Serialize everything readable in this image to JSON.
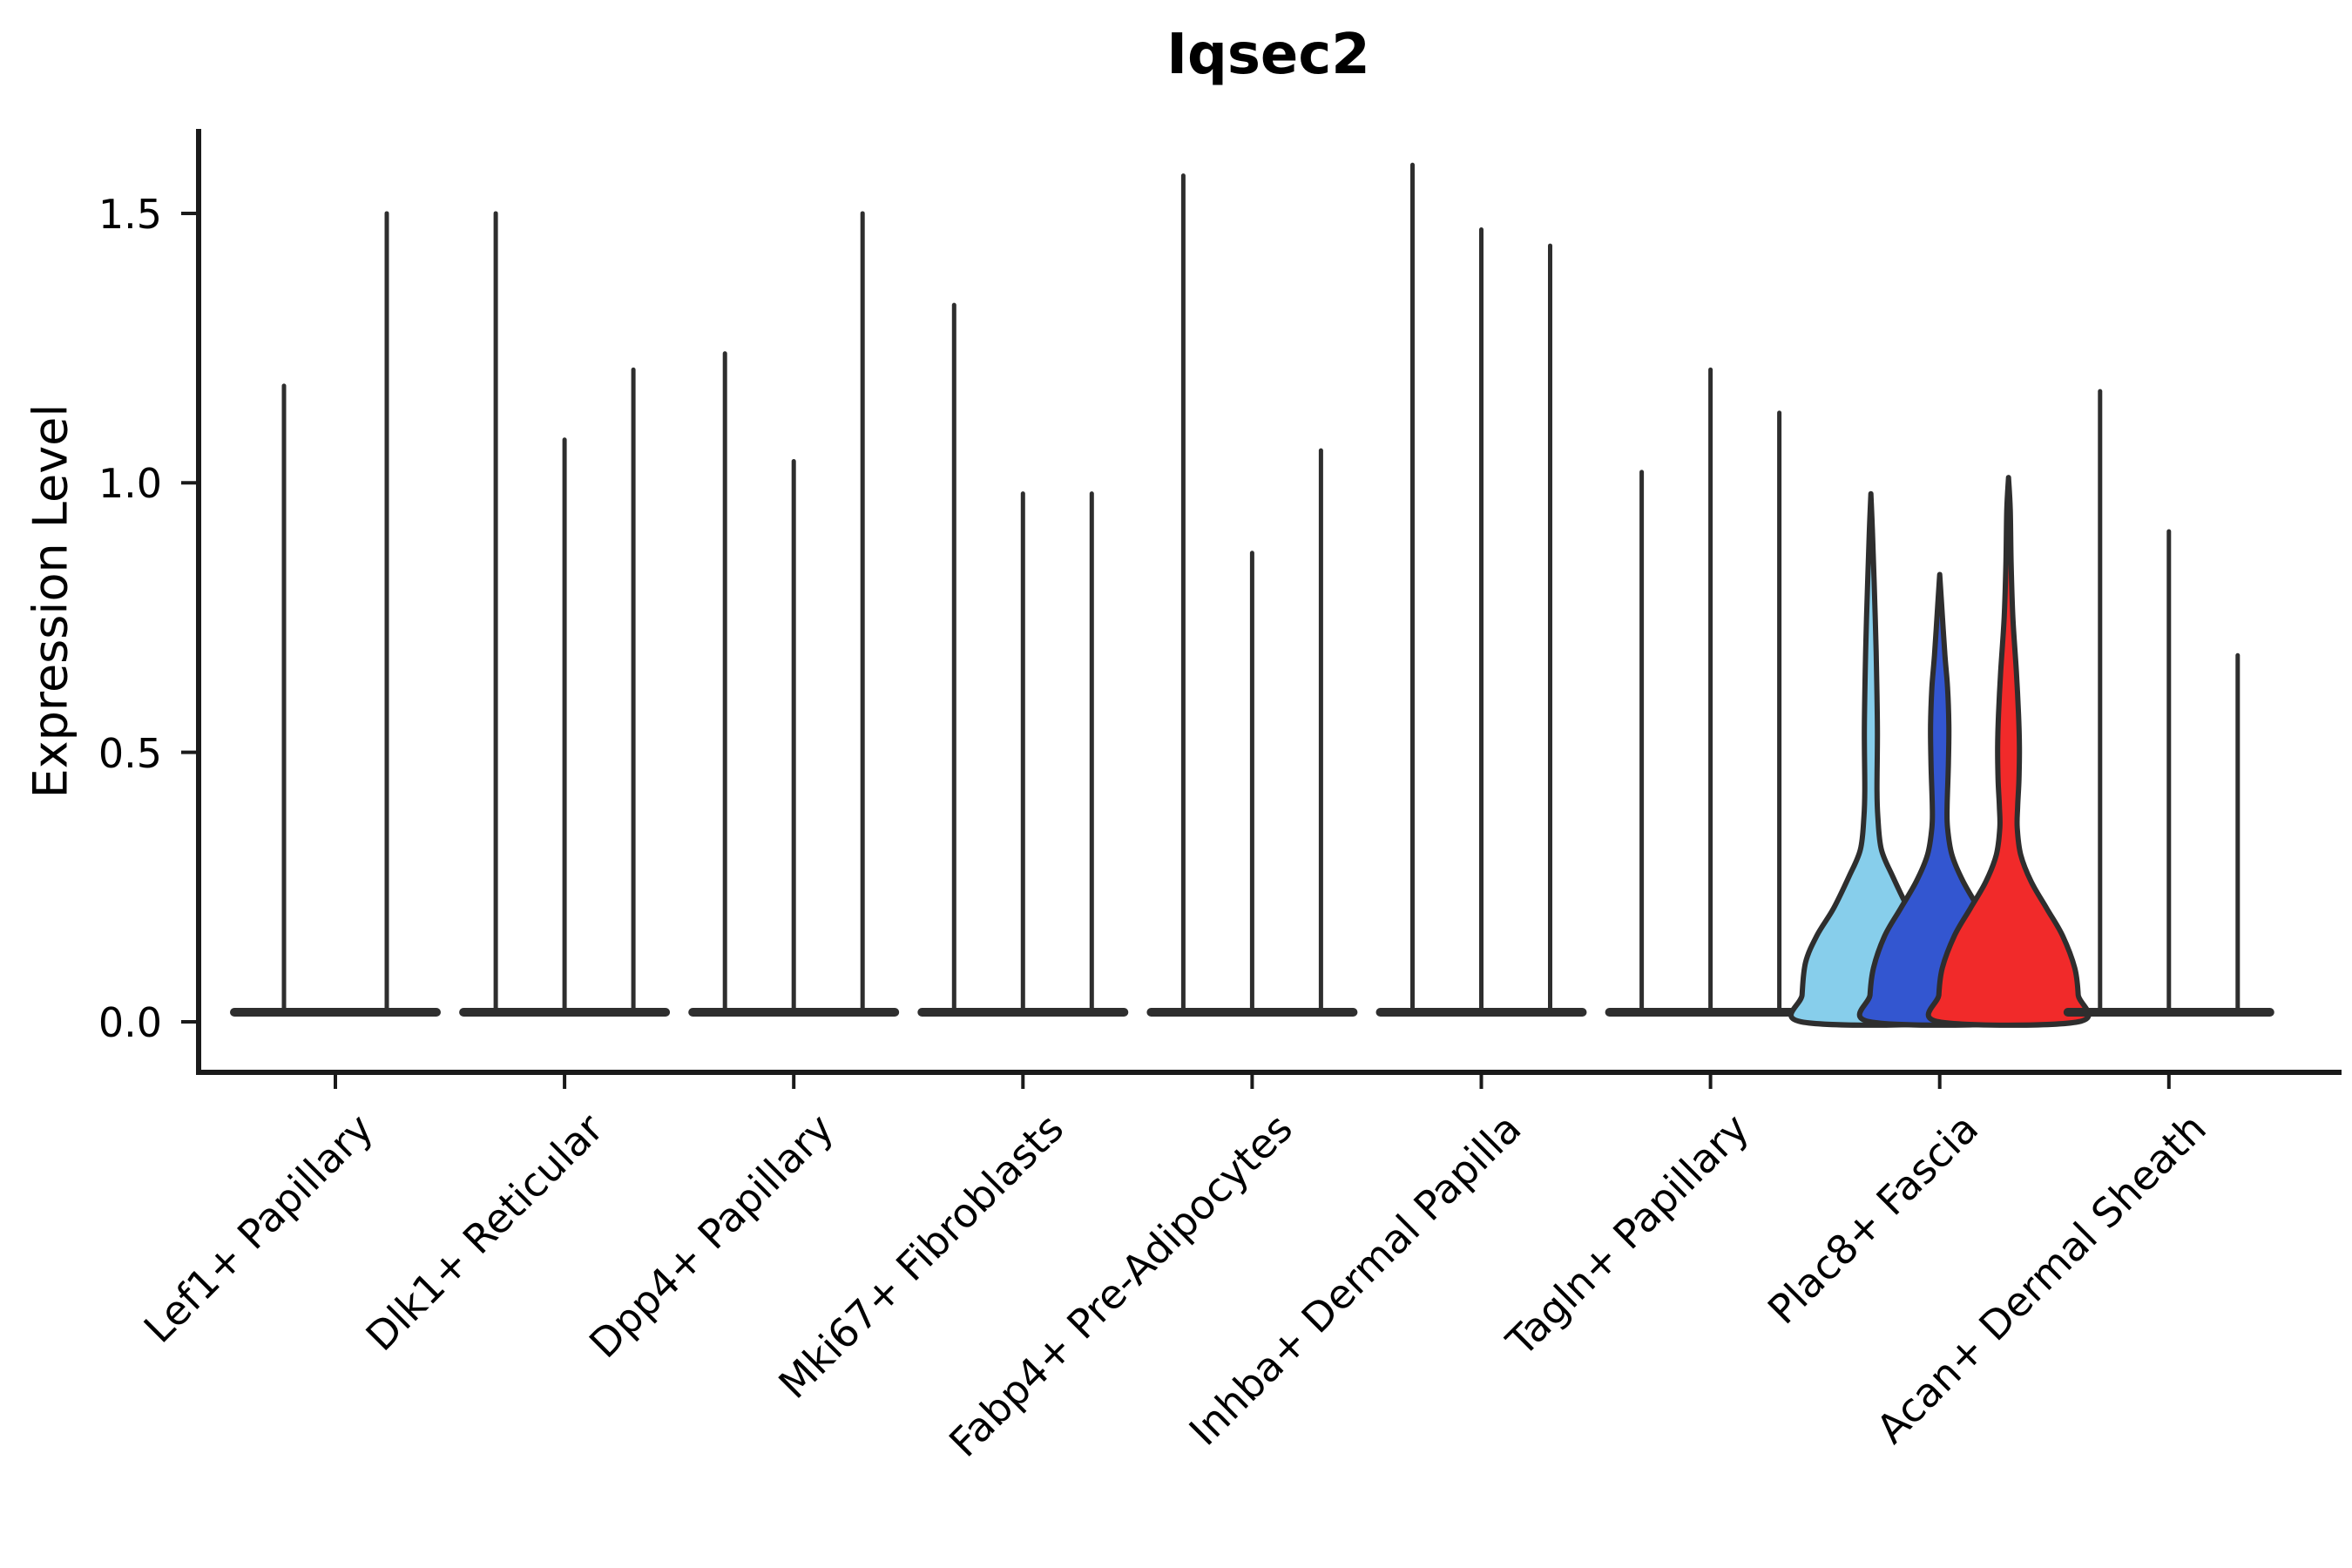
{
  "title": "Iqsec2",
  "y_axis": {
    "label": "Expression Level",
    "tick_labels": [
      "0.0",
      "0.5",
      "1.0",
      "1.5"
    ],
    "tick_values": [
      0.0,
      0.5,
      1.0,
      1.5
    ]
  },
  "colors": {
    "edge": "#2e2e2e",
    "axis": "#1a1a1a",
    "background": "#ffffff",
    "highlight_fills": [
      "#87CEEB",
      "#3356D0",
      "#F12A2A"
    ]
  },
  "chart_data": {
    "type": "violin",
    "title": "Iqsec2",
    "xlabel": "",
    "ylabel": "Expression Level",
    "ylim": [
      0,
      1.68
    ],
    "yticks": [
      0.0,
      0.5,
      1.0,
      1.5
    ],
    "grid": false,
    "legend": "none",
    "x_tick_rotation_deg": 45,
    "categories": [
      "Lef1+ Papillary",
      "Dlk1+ Reticular",
      "Dpp4+ Papillary",
      "Mki67+ Fibroblasts",
      "Fabp4+ Pre-Adipocytes",
      "Inhba+ Dermal Papilla",
      "Tagln+ Papillary",
      "Plac8+ Fascia",
      "Acan+ Dermal Sheath"
    ],
    "groups": [
      {
        "category": "Lef1+ Papillary",
        "colored": false,
        "expression_maxima": [
          1.18,
          1.5
        ]
      },
      {
        "category": "Dlk1+ Reticular",
        "colored": false,
        "expression_maxima": [
          1.5,
          1.08,
          1.21
        ]
      },
      {
        "category": "Dpp4+ Papillary",
        "colored": false,
        "expression_maxima": [
          1.24,
          1.04,
          1.5
        ]
      },
      {
        "category": "Mki67+ Fibroblasts",
        "colored": false,
        "expression_maxima": [
          1.33,
          0.98,
          0.98
        ]
      },
      {
        "category": "Fabp4+ Pre-Adipocytes",
        "colored": false,
        "expression_maxima": [
          1.57,
          0.87,
          1.06
        ]
      },
      {
        "category": "Inhba+ Dermal Papilla",
        "colored": false,
        "expression_maxima": [
          1.59,
          1.47,
          1.44
        ]
      },
      {
        "category": "Tagln+ Papillary",
        "colored": false,
        "expression_maxima": [
          1.02,
          1.21,
          1.13
        ]
      },
      {
        "category": "Plac8+ Fascia",
        "colored": true,
        "expression_maxima": [
          0.98,
          0.83,
          1.01
        ],
        "violin_colors": [
          "#87CEEB",
          "#3356D0",
          "#F12A2A"
        ],
        "profiles": [
          [
            [
              0.98,
              0
            ],
            [
              0.9,
              2
            ],
            [
              0.75,
              5
            ],
            [
              0.65,
              6.5
            ],
            [
              0.54,
              7.5
            ],
            [
              0.43,
              7
            ],
            [
              0.38,
              8
            ],
            [
              0.32,
              12
            ],
            [
              0.27,
              25
            ],
            [
              0.21,
              43
            ],
            [
              0.16,
              62
            ],
            [
              0.11,
              75
            ],
            [
              0.05,
              79
            ],
            [
              0.0,
              80
            ]
          ],
          [
            [
              0.83,
              0
            ],
            [
              0.78,
              2
            ],
            [
              0.68,
              6
            ],
            [
              0.62,
              9
            ],
            [
              0.55,
              10.5
            ],
            [
              0.48,
              10
            ],
            [
              0.4,
              8.5
            ],
            [
              0.36,
              9
            ],
            [
              0.31,
              14
            ],
            [
              0.26,
              27
            ],
            [
              0.21,
              45
            ],
            [
              0.16,
              63
            ],
            [
              0.1,
              76
            ],
            [
              0.05,
              80
            ],
            [
              0.0,
              80
            ]
          ],
          [
            [
              1.01,
              0
            ],
            [
              0.95,
              2
            ],
            [
              0.85,
              3
            ],
            [
              0.75,
              5
            ],
            [
              0.65,
              9
            ],
            [
              0.57,
              11.5
            ],
            [
              0.51,
              12.5
            ],
            [
              0.45,
              12
            ],
            [
              0.4,
              10.5
            ],
            [
              0.36,
              10
            ],
            [
              0.31,
              14
            ],
            [
              0.26,
              26
            ],
            [
              0.21,
              44
            ],
            [
              0.16,
              62
            ],
            [
              0.1,
              76
            ],
            [
              0.05,
              80
            ],
            [
              0.0,
              80
            ]
          ]
        ]
      },
      {
        "category": "Acan+ Dermal Sheath",
        "colored": false,
        "expression_maxima": [
          1.17,
          0.91,
          0.68
        ]
      }
    ]
  }
}
